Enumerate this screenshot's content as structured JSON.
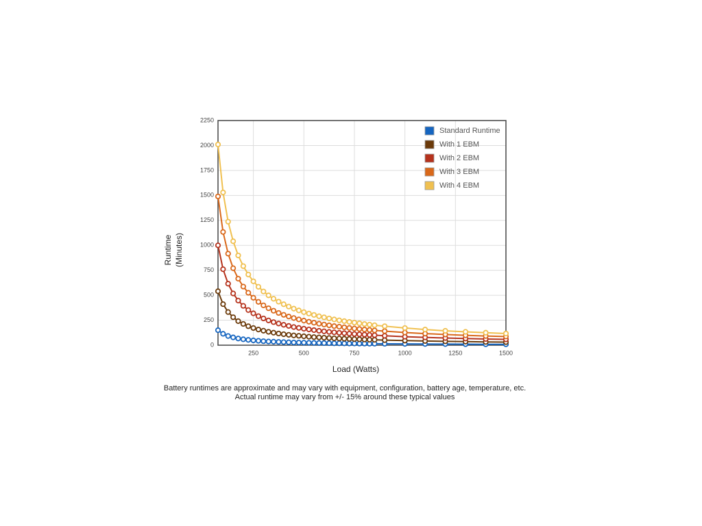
{
  "chart_data": {
    "type": "line",
    "xlabel": "Load (Watts)",
    "ylabel": [
      "Runtime",
      "(Minutes)"
    ],
    "notes": [
      "Battery runtimes are approximate and may vary with equipment, configuration, battery age, temperature, etc.",
      "Actual runtime may vary from +/- 15% around these typical values"
    ],
    "x": [
      75,
      100,
      125,
      150,
      175,
      200,
      225,
      250,
      275,
      300,
      325,
      350,
      375,
      400,
      425,
      450,
      475,
      500,
      525,
      550,
      575,
      600,
      625,
      650,
      675,
      700,
      725,
      750,
      775,
      800,
      825,
      850,
      900,
      1000,
      1100,
      1200,
      1300,
      1400,
      1500
    ],
    "series": [
      {
        "name": "Standard Runtime",
        "color": "#1565c0",
        "values": [
          150,
          114,
          92,
          78,
          67,
          59,
          53,
          48,
          44,
          40,
          37,
          35,
          33,
          31,
          29,
          27,
          26,
          25,
          24,
          23,
          22,
          21,
          20,
          19,
          19,
          18,
          17,
          17,
          16,
          16,
          15,
          15,
          14,
          13,
          12,
          11,
          10,
          9,
          9
        ]
      },
      {
        "name": "With 1 EBM",
        "color": "#6b3a0a",
        "values": [
          540,
          411,
          332,
          280,
          241,
          213,
          190,
          172,
          157,
          145,
          134,
          125,
          117,
          110,
          104,
          98,
          94,
          89,
          85,
          81,
          78,
          75,
          72,
          69,
          67,
          65,
          63,
          61,
          59,
          57,
          55,
          54,
          51,
          46,
          42,
          39,
          36,
          33,
          31
        ]
      },
      {
        "name": "With 2 EBM",
        "color": "#b5321c",
        "values": [
          1000,
          761,
          616,
          518,
          447,
          394,
          352,
          319,
          291,
          268,
          248,
          231,
          217,
          204,
          193,
          182,
          173,
          165,
          158,
          151,
          144,
          139,
          133,
          129,
          124,
          120,
          116,
          112,
          109,
          106,
          103,
          100,
          94,
          85,
          78,
          72,
          67,
          62,
          58
        ]
      },
      {
        "name": "With 3 EBM",
        "color": "#d9681a",
        "values": [
          1490,
          1134,
          917,
          771,
          666,
          587,
          525,
          475,
          434,
          399,
          370,
          345,
          323,
          304,
          287,
          272,
          258,
          246,
          235,
          225,
          215,
          207,
          199,
          191,
          185,
          179,
          173,
          167,
          162,
          157,
          153,
          148,
          141,
          127,
          116,
          107,
          99,
          92,
          87
        ]
      },
      {
        "name": "With 4 EBM",
        "color": "#f0c050",
        "values": [
          2010,
          1530,
          1237,
          1041,
          899,
          792,
          708,
          640,
          585,
          538,
          499,
          465,
          436,
          410,
          387,
          366,
          348,
          331,
          317,
          303,
          290,
          279,
          268,
          258,
          249,
          241,
          233,
          226,
          219,
          212,
          206,
          200,
          190,
          172,
          157,
          144,
          134,
          125,
          117
        ]
      }
    ],
    "xlim": [
      75,
      1500
    ],
    "xticks": [
      250,
      500,
      750,
      1000,
      1250,
      1500
    ],
    "ylim": [
      0,
      2250
    ],
    "yticks": [
      0,
      250,
      500,
      750,
      1000,
      1250,
      1500,
      1750,
      2000,
      2250
    ],
    "grid": true,
    "legend": "top-right"
  }
}
